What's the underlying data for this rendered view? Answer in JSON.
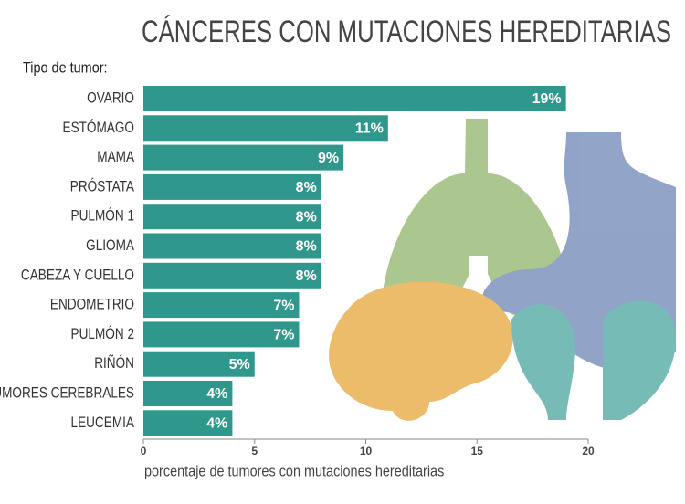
{
  "chart_data": {
    "type": "bar",
    "orientation": "horizontal",
    "title": "CÁNCERES CON MUTACIONES HEREDITARIAS",
    "y_label": "Tipo de tumor:",
    "x_label": "porcentaje de tumores con mutaciones hereditarias",
    "categories": [
      "OVARIO",
      "ESTÓMAGO",
      "MAMA",
      "PRÓSTATA",
      "PULMÓN 1",
      "GLIOMA",
      "CABEZA Y CUELLO",
      "ENDOMETRIO",
      "PULMÓN 2",
      "RIÑÓN",
      "TUMORES CEREBRALES",
      "LEUCEMIA"
    ],
    "values": [
      19,
      11,
      9,
      8,
      8,
      8,
      8,
      7,
      7,
      5,
      4,
      4
    ],
    "value_labels": [
      "19%",
      "11%",
      "9%",
      "8%",
      "8%",
      "8%",
      "8%",
      "7%",
      "7%",
      "5%",
      "4%",
      "4%"
    ],
    "color": "#2f978b",
    "xlim": [
      0,
      20
    ],
    "xticks": [
      0,
      5,
      10,
      15,
      20
    ]
  }
}
